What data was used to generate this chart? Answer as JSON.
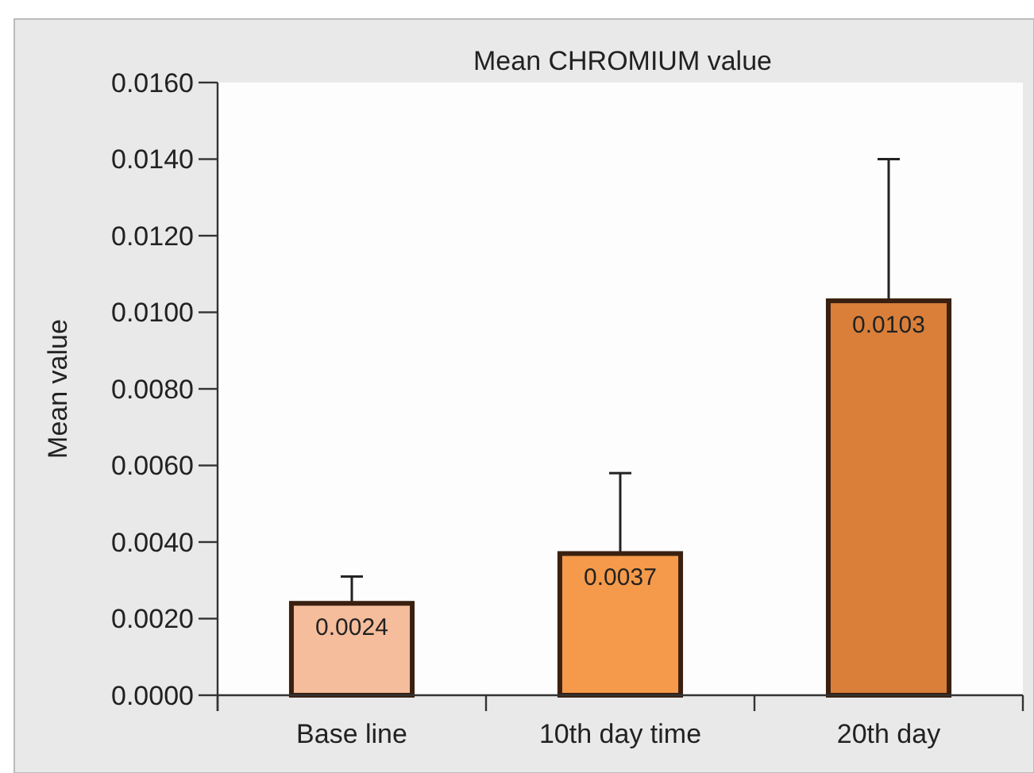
{
  "chart_data": {
    "type": "bar",
    "title": "Mean CHROMIUM value",
    "ylabel": "Mean value",
    "categories": [
      "Base line",
      "10th day time",
      "20th day"
    ],
    "values": [
      0.0024,
      0.0037,
      0.0103
    ],
    "colors": [
      "#f5bd9c",
      "#f59a4a",
      "#d97f3a"
    ],
    "errors": [
      [
        0.0024,
        0.0031
      ],
      [
        0.0037,
        0.0058
      ],
      [
        0.0103,
        0.014
      ]
    ],
    "data_labels": true,
    "ylim": [
      0,
      0.016
    ],
    "yticks": [
      {
        "value": 0,
        "label": "0.0000"
      },
      {
        "value": 0.002,
        "label": "0.0020"
      },
      {
        "value": 0.004,
        "label": "0.0040"
      },
      {
        "value": 0.006,
        "label": "0.0060"
      },
      {
        "value": 0.008,
        "label": "0.0080"
      },
      {
        "value": 0.01,
        "label": "0.0100"
      },
      {
        "value": 0.012,
        "label": "0.0120"
      },
      {
        "value": 0.014,
        "label": "0.0140"
      },
      {
        "value": 0.016,
        "label": "0.0160"
      }
    ],
    "grid": false
  }
}
